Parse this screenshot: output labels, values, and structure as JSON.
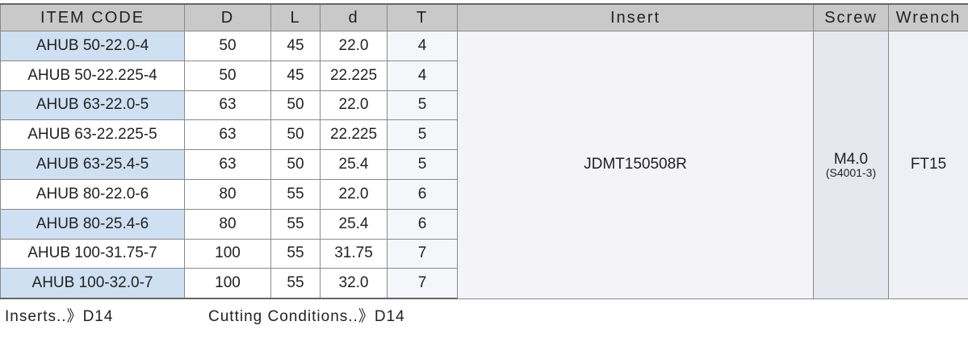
{
  "header": {
    "columns": [
      "ITEM CODE",
      "D",
      "L",
      "d",
      "T",
      "Insert",
      "Screw",
      "Wrench"
    ]
  },
  "table": {
    "rows": [
      [
        "AHUB 50-22.0-4",
        "50",
        "45",
        "22.0",
        "4"
      ],
      [
        "AHUB 50-22.225-4",
        "50",
        "45",
        "22.225",
        "4"
      ],
      [
        "AHUB 63-22.0-5",
        "63",
        "50",
        "22.0",
        "5"
      ],
      [
        "AHUB 63-22.225-5",
        "63",
        "50",
        "22.225",
        "5"
      ],
      [
        "AHUB 63-25.4-5",
        "63",
        "50",
        "25.4",
        "5"
      ],
      [
        "AHUB 80-22.0-6",
        "80",
        "55",
        "22.0",
        "6"
      ],
      [
        "AHUB 80-25.4-6",
        "80",
        "55",
        "25.4",
        "6"
      ],
      [
        "AHUB 100-31.75-7",
        "100",
        "55",
        "31.75",
        "7"
      ],
      [
        "AHUB 100-32.0-7",
        "100",
        "55",
        "32.0",
        "7"
      ]
    ],
    "insert": "JDMT150508R",
    "screw": "M4.0",
    "screw_code": "(S4001-3)",
    "wrench": "FT15"
  },
  "footer": {
    "inserts": "Inserts..》D14",
    "cutting": "Cutting Conditions..》D14"
  }
}
